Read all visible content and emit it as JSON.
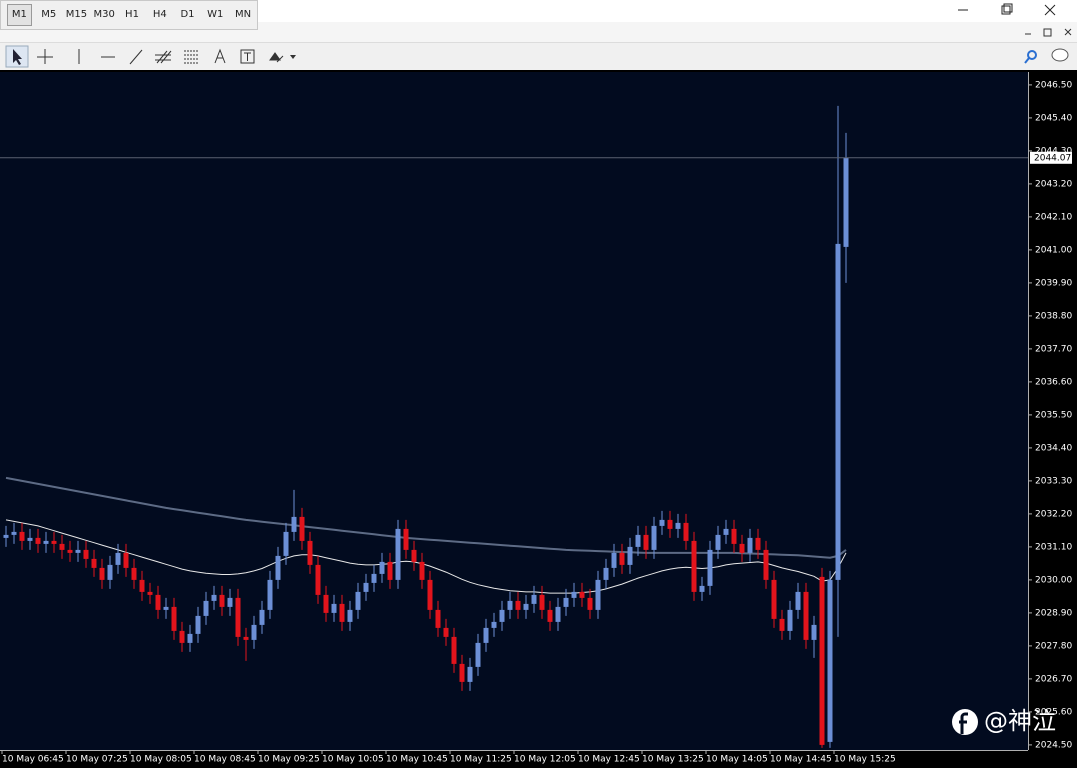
{
  "toolbar": {
    "timeframes": [
      "M1",
      "M5",
      "M15",
      "M30",
      "H1",
      "H4",
      "D1",
      "W1",
      "MN"
    ]
  },
  "watermark": "@神泣",
  "chart_data": {
    "type": "candlestick",
    "categories": [
      "10 May 06:45",
      null,
      null,
      null,
      null,
      null,
      null,
      null,
      "10 May 07:25",
      null,
      null,
      null,
      null,
      null,
      null,
      null,
      "10 May 08:05",
      null,
      null,
      null,
      null,
      null,
      null,
      null,
      "10 May 08:45",
      null,
      null,
      null,
      null,
      null,
      null,
      null,
      "10 May 09:25",
      null,
      null,
      null,
      null,
      null,
      null,
      null,
      "10 May 10:05",
      null,
      null,
      null,
      null,
      null,
      null,
      null,
      "10 May 10:45",
      null,
      null,
      null,
      null,
      null,
      null,
      null,
      "10 May 11:25",
      null,
      null,
      null,
      null,
      null,
      null,
      null,
      "10 May 12:05",
      null,
      null,
      null,
      null,
      null,
      null,
      null,
      "10 May 12:45",
      null,
      null,
      null,
      null,
      null,
      null,
      null,
      "10 May 13:25",
      null,
      null,
      null,
      null,
      null,
      null,
      null,
      "10 May 14:05",
      null,
      null,
      null,
      null,
      null,
      null,
      null,
      "10 May 14:45",
      null,
      null,
      null,
      null,
      null,
      null,
      null,
      "10 May 15:25",
      null
    ],
    "open": [
      2031.4,
      2031.5,
      2031.6,
      2031.3,
      2031.4,
      2031.2,
      2031.3,
      2031.2,
      2031.0,
      2030.9,
      2031.0,
      2030.7,
      2030.4,
      2030.0,
      2030.5,
      2030.9,
      2030.4,
      2030.0,
      2029.6,
      2029.5,
      2029.0,
      2029.1,
      2028.3,
      2027.9,
      2028.2,
      2028.8,
      2029.3,
      2029.5,
      2029.1,
      2029.4,
      2028.1,
      2028.0,
      2028.5,
      2029.0,
      2030.0,
      2030.8,
      2031.6,
      2032.1,
      2031.3,
      2030.5,
      2029.5,
      2028.9,
      2029.2,
      2028.6,
      2029.0,
      2029.6,
      2029.9,
      2030.2,
      2030.6,
      2030.0,
      2031.7,
      2031.0,
      2030.6,
      2030.0,
      2029.0,
      2028.4,
      2028.1,
      2027.2,
      2026.6,
      2027.1,
      2027.9,
      2028.4,
      2028.6,
      2029.0,
      2029.3,
      2029.0,
      2029.2,
      2029.5,
      2029.0,
      2028.6,
      2029.1,
      2029.4,
      2029.6,
      2029.4,
      2029.0,
      2030.0,
      2030.4,
      2030.9,
      2030.5,
      2031.1,
      2031.5,
      2031.0,
      2031.8,
      2032.0,
      2031.7,
      2031.9,
      2031.3,
      2029.6,
      2029.8,
      2031.0,
      2031.5,
      2031.7,
      2031.2,
      2030.9,
      2031.4,
      2031.0,
      2030.0,
      2028.7,
      2028.3,
      2029.0,
      2029.6,
      2028.0,
      2030.1,
      2024.6,
      2030.0,
      2041.1
    ],
    "high": [
      2031.8,
      2031.9,
      2031.9,
      2031.7,
      2031.7,
      2031.6,
      2031.6,
      2031.5,
      2031.3,
      2031.3,
      2031.3,
      2031.0,
      2030.7,
      2030.8,
      2031.2,
      2031.2,
      2030.7,
      2030.3,
      2029.9,
      2029.8,
      2029.4,
      2029.4,
      2028.6,
      2028.5,
      2029.1,
      2029.6,
      2029.8,
      2029.8,
      2029.7,
      2029.7,
      2028.4,
      2028.8,
      2029.3,
      2030.3,
      2031.1,
      2031.9,
      2033.0,
      2032.4,
      2031.6,
      2030.8,
      2029.8,
      2029.5,
      2029.5,
      2029.3,
      2029.9,
      2030.2,
      2030.5,
      2030.9,
      2030.9,
      2032.0,
      2032.0,
      2031.3,
      2030.9,
      2030.3,
      2029.3,
      2028.7,
      2028.4,
      2027.5,
      2027.4,
      2028.2,
      2028.7,
      2028.9,
      2029.3,
      2029.6,
      2029.6,
      2029.5,
      2029.8,
      2029.8,
      2029.3,
      2029.4,
      2029.7,
      2029.9,
      2029.9,
      2029.7,
      2030.3,
      2030.7,
      2031.2,
      2031.2,
      2031.4,
      2031.8,
      2031.8,
      2032.1,
      2032.3,
      2032.3,
      2032.2,
      2032.2,
      2031.6,
      2030.1,
      2031.3,
      2031.8,
      2032.0,
      2032.0,
      2031.5,
      2031.7,
      2031.7,
      2031.3,
      2030.3,
      2029.0,
      2029.3,
      2029.9,
      2029.9,
      2028.8,
      2030.4,
      2030.3,
      2045.8,
      2044.9
    ],
    "low": [
      2031.1,
      2031.2,
      2031.0,
      2031.0,
      2030.9,
      2030.9,
      2030.9,
      2030.7,
      2030.6,
      2030.6,
      2030.4,
      2030.1,
      2029.7,
      2029.7,
      2030.2,
      2030.1,
      2029.7,
      2029.3,
      2029.2,
      2028.7,
      2028.7,
      2028.0,
      2027.6,
      2027.6,
      2027.9,
      2028.5,
      2029.0,
      2028.8,
      2028.8,
      2027.8,
      2027.3,
      2027.7,
      2028.2,
      2028.7,
      2029.7,
      2030.5,
      2031.3,
      2031.0,
      2030.2,
      2029.2,
      2028.6,
      2028.6,
      2028.3,
      2028.3,
      2028.7,
      2029.3,
      2029.6,
      2029.9,
      2029.7,
      2029.7,
      2030.7,
      2030.3,
      2029.7,
      2028.7,
      2028.1,
      2027.8,
      2026.9,
      2026.3,
      2026.3,
      2026.8,
      2027.6,
      2028.1,
      2028.3,
      2028.7,
      2028.7,
      2028.7,
      2028.9,
      2028.7,
      2028.3,
      2028.3,
      2028.8,
      2029.1,
      2029.1,
      2028.7,
      2028.7,
      2029.7,
      2030.1,
      2030.2,
      2030.2,
      2030.8,
      2030.7,
      2030.7,
      2031.5,
      2031.4,
      2031.4,
      2031.0,
      2029.3,
      2029.3,
      2029.5,
      2030.7,
      2031.2,
      2030.9,
      2030.6,
      2030.6,
      2030.7,
      2029.7,
      2028.4,
      2028.0,
      2028.0,
      2028.7,
      2027.7,
      2027.4,
      2024.4,
      2024.4,
      2028.1,
      2039.9
    ],
    "close": [
      2031.5,
      2031.6,
      2031.3,
      2031.4,
      2031.2,
      2031.3,
      2031.2,
      2031.0,
      2030.9,
      2031.0,
      2030.7,
      2030.4,
      2030.0,
      2030.5,
      2030.9,
      2030.4,
      2030.0,
      2029.6,
      2029.5,
      2029.0,
      2029.1,
      2028.3,
      2027.9,
      2028.2,
      2028.8,
      2029.3,
      2029.5,
      2029.1,
      2029.4,
      2028.1,
      2028.0,
      2028.5,
      2029.0,
      2030.0,
      2030.8,
      2031.6,
      2032.1,
      2031.3,
      2030.5,
      2029.5,
      2028.9,
      2029.2,
      2028.6,
      2029.0,
      2029.6,
      2029.9,
      2030.2,
      2030.6,
      2030.0,
      2031.7,
      2031.0,
      2030.6,
      2030.0,
      2029.0,
      2028.4,
      2028.1,
      2027.2,
      2026.6,
      2027.1,
      2027.9,
      2028.4,
      2028.6,
      2029.0,
      2029.3,
      2029.0,
      2029.2,
      2029.5,
      2029.0,
      2028.6,
      2029.1,
      2029.4,
      2029.6,
      2029.4,
      2029.0,
      2030.0,
      2030.4,
      2030.9,
      2030.5,
      2031.1,
      2031.5,
      2031.0,
      2031.8,
      2032.0,
      2031.7,
      2031.9,
      2031.3,
      2029.6,
      2029.8,
      2031.0,
      2031.5,
      2031.7,
      2031.2,
      2030.9,
      2031.4,
      2031.0,
      2030.0,
      2028.7,
      2028.3,
      2029.0,
      2029.6,
      2028.0,
      2028.5,
      2024.5,
      2030.0,
      2041.2,
      2044.07
    ],
    "up_color": "#6c8fd6",
    "down_color": "#e3141c",
    "overlays": [
      {
        "color": "#5d6b85",
        "values": [
          2033.4,
          2033.35,
          2033.3,
          2033.25,
          2033.2,
          2033.15,
          2033.1,
          2033.05,
          2033.0,
          2032.95,
          2032.9,
          2032.85,
          2032.8,
          2032.75,
          2032.7,
          2032.65,
          2032.6,
          2032.55,
          2032.5,
          2032.45,
          2032.4,
          2032.36,
          2032.32,
          2032.28,
          2032.24,
          2032.2,
          2032.16,
          2032.12,
          2032.08,
          2032.04,
          2032.0,
          2031.97,
          2031.94,
          2031.91,
          2031.88,
          2031.85,
          2031.82,
          2031.79,
          2031.76,
          2031.73,
          2031.7,
          2031.67,
          2031.64,
          2031.61,
          2031.58,
          2031.55,
          2031.52,
          2031.49,
          2031.46,
          2031.43,
          2031.4,
          2031.38,
          2031.36,
          2031.34,
          2031.32,
          2031.3,
          2031.28,
          2031.26,
          2031.24,
          2031.22,
          2031.2,
          2031.18,
          2031.16,
          2031.14,
          2031.12,
          2031.1,
          2031.08,
          2031.06,
          2031.04,
          2031.02,
          2031.0,
          2030.99,
          2030.98,
          2030.97,
          2030.96,
          2030.95,
          2030.94,
          2030.93,
          2030.92,
          2030.91,
          2030.9,
          2030.9,
          2030.9,
          2030.9,
          2030.9,
          2030.9,
          2030.9,
          2030.9,
          2030.9,
          2030.9,
          2030.9,
          2030.9,
          2030.89,
          2030.88,
          2030.87,
          2030.86,
          2030.85,
          2030.84,
          2030.83,
          2030.82,
          2030.8,
          2030.78,
          2030.76,
          2030.74,
          2030.8,
          2031.0
        ]
      },
      {
        "color": "#e8e8e8",
        "values": [
          2032.0,
          2031.95,
          2031.9,
          2031.85,
          2031.8,
          2031.72,
          2031.64,
          2031.56,
          2031.48,
          2031.4,
          2031.32,
          2031.24,
          2031.16,
          2031.08,
          2031.0,
          2030.92,
          2030.84,
          2030.76,
          2030.68,
          2030.6,
          2030.52,
          2030.44,
          2030.36,
          2030.3,
          2030.26,
          2030.22,
          2030.2,
          2030.18,
          2030.18,
          2030.2,
          2030.24,
          2030.3,
          2030.38,
          2030.5,
          2030.62,
          2030.72,
          2030.8,
          2030.84,
          2030.84,
          2030.8,
          2030.74,
          2030.68,
          2030.62,
          2030.56,
          2030.52,
          2030.5,
          2030.5,
          2030.52,
          2030.54,
          2030.6,
          2030.62,
          2030.6,
          2030.54,
          2030.46,
          2030.36,
          2030.26,
          2030.14,
          2030.02,
          2029.92,
          2029.84,
          2029.78,
          2029.72,
          2029.68,
          2029.64,
          2029.62,
          2029.6,
          2029.6,
          2029.58,
          2029.56,
          2029.56,
          2029.56,
          2029.56,
          2029.58,
          2029.6,
          2029.64,
          2029.7,
          2029.78,
          2029.86,
          2029.96,
          2030.06,
          2030.14,
          2030.22,
          2030.3,
          2030.36,
          2030.4,
          2030.42,
          2030.4,
          2030.38,
          2030.4,
          2030.44,
          2030.5,
          2030.54,
          2030.56,
          2030.58,
          2030.6,
          2030.56,
          2030.48,
          2030.4,
          2030.34,
          2030.28,
          2030.2,
          2030.12,
          2029.96,
          2030.0,
          2030.4,
          2030.9
        ]
      }
    ],
    "current_price": 2044.07,
    "ylim": [
      2024.33,
      2046.93
    ],
    "yticks": [
      {
        "value": 2046.5,
        "label": "2046.50"
      },
      {
        "value": 2045.4,
        "label": "2045.40"
      },
      {
        "value": 2044.3,
        "label": "2044.30"
      },
      {
        "value": 2043.2,
        "label": "2043.20"
      },
      {
        "value": 2042.1,
        "label": "2042.10"
      },
      {
        "value": 2041.0,
        "label": "2041.00"
      },
      {
        "value": 2039.9,
        "label": "2039.90"
      },
      {
        "value": 2038.8,
        "label": "2038.80"
      },
      {
        "value": 2037.7,
        "label": "2037.70"
      },
      {
        "value": 2036.6,
        "label": "2036.60"
      },
      {
        "value": 2035.5,
        "label": "2035.50"
      },
      {
        "value": 2034.4,
        "label": "2034.40"
      },
      {
        "value": 2033.3,
        "label": "2033.30"
      },
      {
        "value": 2032.2,
        "label": "2032.20"
      },
      {
        "value": 2031.1,
        "label": "2031.10"
      },
      {
        "value": 2030.0,
        "label": "2030.00"
      },
      {
        "value": 2028.9,
        "label": "2028.90"
      },
      {
        "value": 2027.8,
        "label": "2027.80"
      },
      {
        "value": 2026.7,
        "label": "2026.70"
      },
      {
        "value": 2025.6,
        "label": "2025.60"
      },
      {
        "value": 2024.5,
        "label": "2024.50"
      }
    ],
    "grid": false
  }
}
